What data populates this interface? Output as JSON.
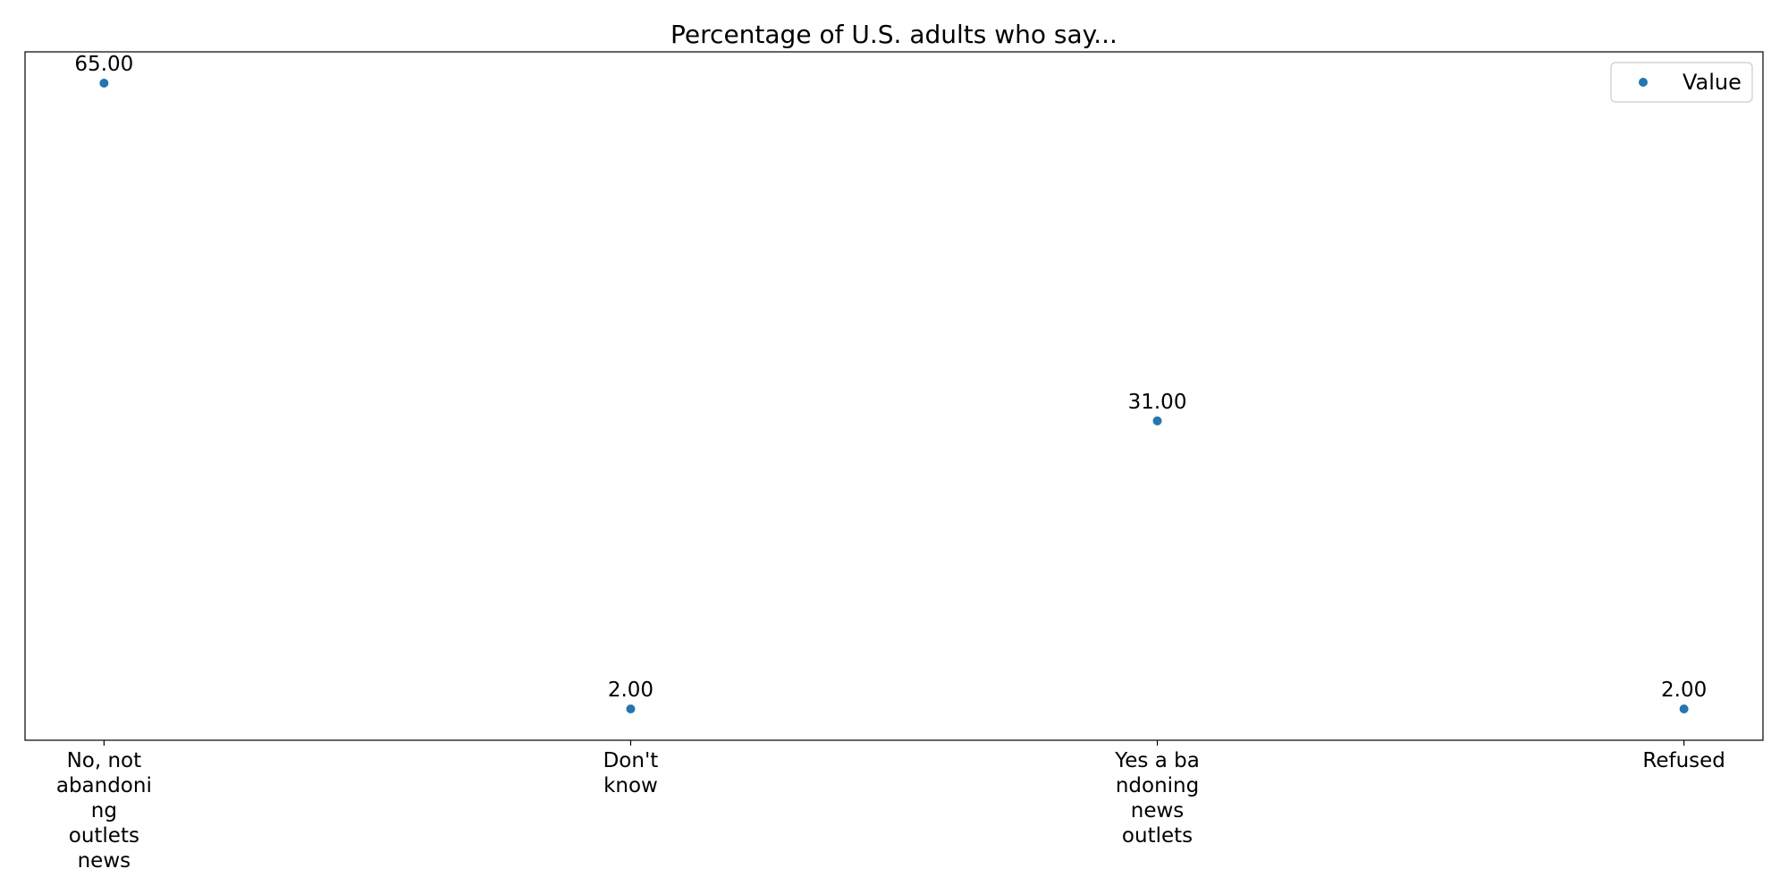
{
  "chart_data": {
    "type": "scatter",
    "title": "Percentage of U.S. adults who say...",
    "xlabel": "",
    "ylabel": "",
    "categories": [
      [
        "No, not",
        "abandoni",
        "ng",
        "outlets",
        "news"
      ],
      [
        "Don't",
        "know"
      ],
      [
        "Yes a ba",
        "ndoning",
        "news",
        "outlets"
      ],
      [
        "Refused"
      ]
    ],
    "series": [
      {
        "name": "Value",
        "color": "#1f77b4",
        "values": [
          65,
          2,
          31,
          2
        ],
        "labels": [
          "65.00",
          "2.00",
          "31.00",
          "2.00"
        ]
      }
    ],
    "ylim": [
      -1.15,
      68.15
    ],
    "y_axis_visible": false,
    "grid": false,
    "legend": "top-right"
  }
}
